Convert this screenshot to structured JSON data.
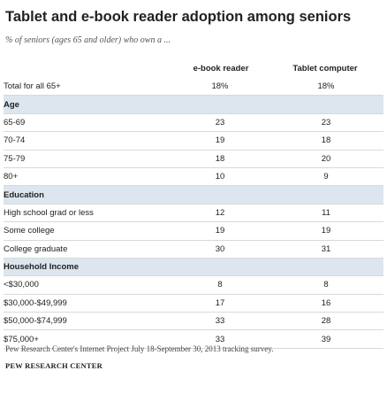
{
  "title": "Tablet and e-book reader adoption among seniors",
  "subtitle": "% of seniors (ages 65 and older) who own a ...",
  "columns": [
    "e-book reader",
    "Tablet computer"
  ],
  "rows": [
    {
      "label": "Total for all 65+",
      "ebook": "18%",
      "tablet": "18%",
      "kind": "total"
    },
    {
      "label": "Age",
      "ebook": "",
      "tablet": "",
      "kind": "section"
    },
    {
      "label": "65-69",
      "ebook": "23",
      "tablet": "23",
      "kind": "data"
    },
    {
      "label": "70-74",
      "ebook": "19",
      "tablet": "18",
      "kind": "data"
    },
    {
      "label": "75-79",
      "ebook": "18",
      "tablet": "20",
      "kind": "data"
    },
    {
      "label": "80+",
      "ebook": "10",
      "tablet": "9",
      "kind": "data"
    },
    {
      "label": "Education",
      "ebook": "",
      "tablet": "",
      "kind": "section"
    },
    {
      "label": "High school grad or less",
      "ebook": "12",
      "tablet": "11",
      "kind": "data"
    },
    {
      "label": "Some college",
      "ebook": "19",
      "tablet": "19",
      "kind": "data"
    },
    {
      "label": "College graduate",
      "ebook": "30",
      "tablet": "31",
      "kind": "data"
    },
    {
      "label": "Household Income",
      "ebook": "",
      "tablet": "",
      "kind": "section"
    },
    {
      "label": "<$30,000",
      "ebook": "8",
      "tablet": "8",
      "kind": "data"
    },
    {
      "label": "$30,000-$49,999",
      "ebook": "17",
      "tablet": "16",
      "kind": "data"
    },
    {
      "label": "$50,000-$74,999",
      "ebook": "33",
      "tablet": "28",
      "kind": "data"
    },
    {
      "label": "$75,000+",
      "ebook": "33",
      "tablet": "39",
      "kind": "data"
    }
  ],
  "source": "Pew Research Center's Internet Project July 18-September 30, 2013 tracking survey.",
  "org": "PEW RESEARCH CENTER",
  "colors": {
    "section_band": "#dde6ee",
    "rule": "#d9d9d9",
    "text": "#222222"
  }
}
